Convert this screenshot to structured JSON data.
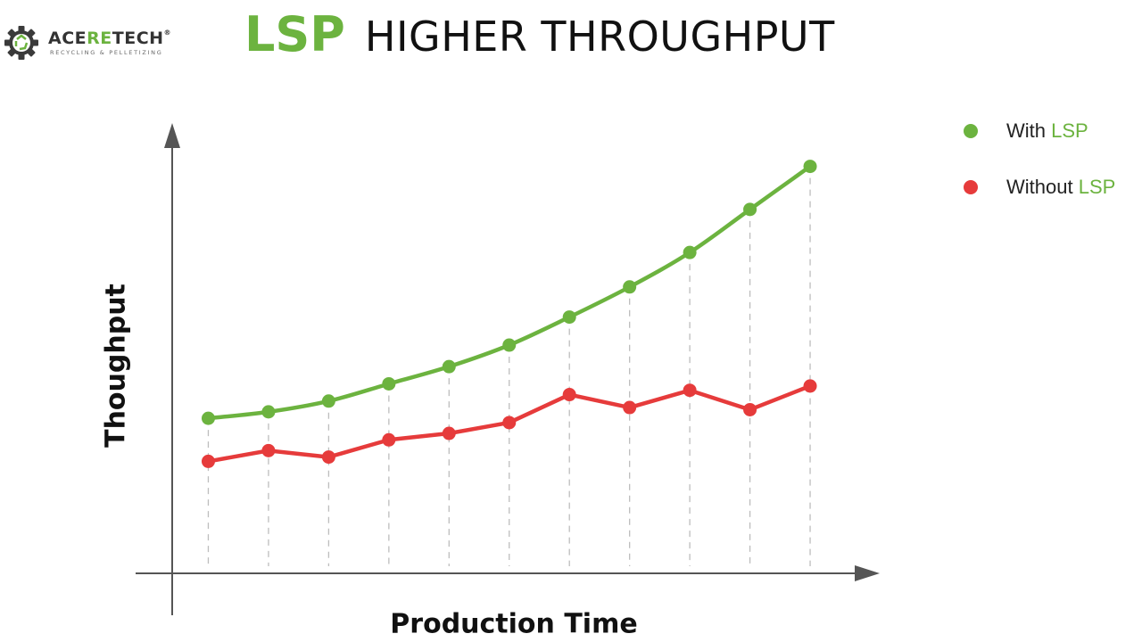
{
  "brand": {
    "name_a": "ACE",
    "name_b": "RE",
    "name_c": "TECH",
    "registered": "®",
    "tagline": "RECYCLING & PELLETIZING",
    "logo_icon": "gear-recycle-icon",
    "accent_color": "#6cb33f"
  },
  "header": {
    "title_highlight": "LSP",
    "title_rest": "HIGHER THROUGHPUT"
  },
  "legend": {
    "items": [
      {
        "prefix": "With ",
        "highlight": "LSP",
        "color": "#6cb33f"
      },
      {
        "prefix": "Without ",
        "highlight": "LSP",
        "color": "#e63b3b"
      }
    ]
  },
  "chart_data": {
    "type": "line",
    "title": "LSP HIGHER THROUGHPUT",
    "xlabel": "Production Time",
    "ylabel": "Thoughput",
    "x": [
      1,
      2,
      3,
      4,
      5,
      6,
      7,
      8,
      9,
      10,
      11
    ],
    "xlim": [
      0.4,
      11.8
    ],
    "ylim": [
      0,
      100
    ],
    "grid": "vertical dashed lines at each x point",
    "legend_position": "top-right",
    "axis_ticks": "none",
    "series": [
      {
        "name": "With LSP",
        "color": "#6cb33f",
        "smooth": true,
        "values": [
          36,
          37.5,
          40,
          44,
          48,
          53,
          59.5,
          66.5,
          74.5,
          84.5,
          94.5
        ]
      },
      {
        "name": "Without LSP",
        "color": "#e63b3b",
        "smooth": false,
        "values": [
          26,
          28.5,
          27,
          31,
          32.5,
          35,
          41.5,
          38.5,
          42.5,
          38,
          43.5
        ]
      }
    ]
  }
}
